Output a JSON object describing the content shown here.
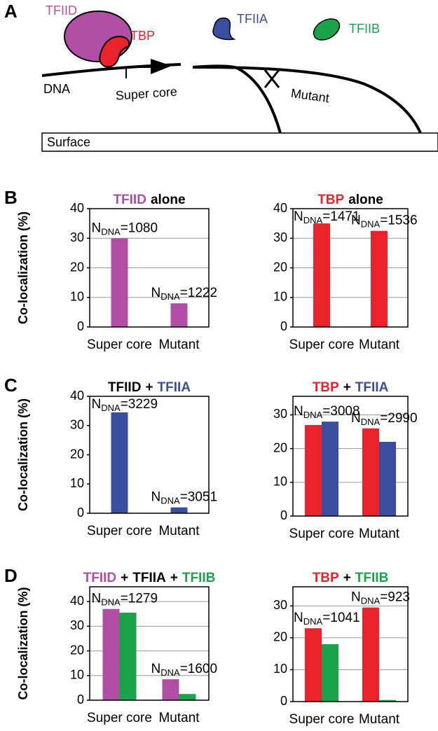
{
  "diagram": {
    "panel": "A",
    "tfiid": "TFIID",
    "tbp": "TBP",
    "tfiia": "TFIIA",
    "tfiib": "TFIIB",
    "dna": "DNA",
    "super_core": "Super core",
    "mutant": "Mutant",
    "surface": "Surface"
  },
  "chart_data": [
    {
      "type": "bar",
      "panel": "B",
      "ylabel": "Co-localization (%)",
      "title": [
        "TFIID",
        "alone"
      ],
      "title_colors": [
        "#b04fa5",
        "#000000"
      ],
      "categories": [
        "Super core",
        "Mutant"
      ],
      "series": [
        {
          "color": "#b04fa5",
          "values": [
            30,
            8
          ]
        }
      ],
      "annotations": [
        {
          "symbol": "N",
          "subscript": "DNA",
          "relation": "=",
          "count": 1080
        },
        {
          "symbol": "N",
          "subscript": "DNA",
          "relation": "=",
          "count": 1222
        }
      ],
      "ylim": [
        0,
        40
      ],
      "yticks": [
        0,
        10,
        20,
        30,
        40
      ],
      "grid": true
    },
    {
      "type": "bar",
      "title": [
        "TBP",
        "alone"
      ],
      "title_colors": [
        "#e8232a",
        "#000000"
      ],
      "categories": [
        "Super core",
        "Mutant"
      ],
      "series": [
        {
          "color": "#e8232a",
          "values": [
            35,
            32.5
          ]
        }
      ],
      "annotations": [
        {
          "symbol": "N",
          "subscript": "DNA",
          "relation": "=",
          "count": 1471
        },
        {
          "symbol": "N",
          "subscript": "DNA",
          "relation": "=",
          "count": 1536
        }
      ],
      "ylim": [
        0,
        40
      ],
      "yticks": [
        0,
        10,
        20,
        30,
        40
      ],
      "grid": true
    },
    {
      "type": "bar",
      "panel": "C",
      "ylabel": "Co-localization (%)",
      "title": [
        "TFIID",
        "+",
        "TFIIA"
      ],
      "title_colors": [
        "#000000",
        "#000000",
        "#3a4ea0"
      ],
      "categories": [
        "Super core",
        "Mutant"
      ],
      "series": [
        {
          "color": "#3a4ea0",
          "values": [
            34.5,
            2
          ]
        }
      ],
      "annotations": [
        {
          "symbol": "N",
          "subscript": "DNA",
          "relation": "=",
          "count": 3229
        },
        {
          "symbol": "N",
          "subscript": "DNA",
          "relation": "=",
          "count": 3051
        }
      ],
      "ylim": [
        0,
        40
      ],
      "yticks": [
        0,
        10,
        20,
        30,
        40
      ],
      "grid": false
    },
    {
      "type": "bar",
      "title": [
        "TBP",
        "+",
        "TFIIA"
      ],
      "title_colors": [
        "#e8232a",
        "#000000",
        "#3a4ea0"
      ],
      "categories": [
        "Super core",
        "Mutant"
      ],
      "series": [
        {
          "color": "#e8232a",
          "values": [
            27,
            26
          ]
        },
        {
          "color": "#3a4ea0",
          "values": [
            28,
            22
          ]
        }
      ],
      "annotations": [
        {
          "symbol": "N",
          "subscript": "DNA",
          "relation": "=",
          "count": 3008
        },
        {
          "symbol": "N",
          "subscript": "DNA",
          "relation": "=",
          "count": 2990
        }
      ],
      "ylim": [
        0,
        35.5
      ],
      "yticks": [
        0,
        10,
        20,
        30
      ],
      "grid": true
    },
    {
      "type": "bar",
      "panel": "D",
      "ylabel": "Co-localization (%)",
      "title": [
        "TFIID",
        "+",
        "TFIIA",
        "+",
        "TFIIB"
      ],
      "title_colors": [
        "#b04fa5",
        "#000000",
        "#000000",
        "#000000",
        "#1aa34a"
      ],
      "categories": [
        "Super core",
        "Mutant"
      ],
      "series": [
        {
          "color": "#b04fa5",
          "values": [
            37,
            8.5
          ]
        },
        {
          "color": "#1aa34a",
          "values": [
            35.5,
            2.5
          ]
        }
      ],
      "annotations": [
        {
          "symbol": "N",
          "subscript": "DNA",
          "relation": "=",
          "count": 1279
        },
        {
          "symbol": "N",
          "subscript": "DNA",
          "relation": "=",
          "count": 1600
        }
      ],
      "ylim": [
        0,
        46
      ],
      "yticks": [
        0,
        10,
        20,
        30,
        40
      ],
      "grid": true
    },
    {
      "type": "bar",
      "title": [
        "TBP",
        "+",
        "TFIIB"
      ],
      "title_colors": [
        "#e8232a",
        "#000000",
        "#1aa34a"
      ],
      "categories": [
        "Super core",
        "Mutant"
      ],
      "series": [
        {
          "color": "#e8232a",
          "values": [
            23,
            29.5
          ]
        },
        {
          "color": "#1aa34a",
          "values": [
            18,
            0.5
          ]
        }
      ],
      "annotations": [
        {
          "symbol": "N",
          "subscript": "DNA",
          "relation": "=",
          "count": 1041
        },
        {
          "symbol": "N",
          "subscript": "DNA",
          "relation": "=",
          "count": 923
        }
      ],
      "ylim": [
        0,
        36
      ],
      "yticks": [
        0,
        10,
        20,
        30
      ],
      "grid": true
    }
  ]
}
